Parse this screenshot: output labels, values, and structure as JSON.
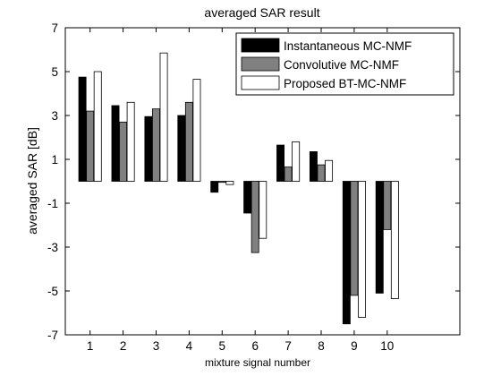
{
  "chart_data": {
    "type": "bar",
    "title": "averaged SAR result",
    "xlabel": "mixture signal number",
    "ylabel": "averaged SAR [dB]",
    "categories": [
      "1",
      "2",
      "3",
      "4",
      "5",
      "6",
      "7",
      "8",
      "9",
      "10"
    ],
    "xlim": [
      0.25,
      12.2
    ],
    "ylim": [
      -7,
      7
    ],
    "yticks": [
      "-7",
      "-5",
      "-3",
      "-1",
      "1",
      "3",
      "5",
      "7"
    ],
    "grid": false,
    "legend_position": "top-right",
    "series": [
      {
        "name": "Instantaneous MC-NMF",
        "color": "#000000",
        "values": [
          4.75,
          3.45,
          2.95,
          3.0,
          -0.5,
          -1.45,
          1.65,
          1.35,
          -6.5,
          -5.1
        ]
      },
      {
        "name": "Convolutive MC-NMF",
        "color": "#808080",
        "values": [
          3.2,
          2.7,
          3.3,
          3.6,
          -0.05,
          -3.25,
          0.65,
          0.75,
          -5.2,
          -2.2
        ]
      },
      {
        "name": "Proposed BT-MC-NMF",
        "color": "#ffffff",
        "values": [
          5.0,
          3.6,
          5.85,
          4.65,
          -0.15,
          -2.6,
          1.8,
          0.95,
          -6.2,
          -5.35
        ]
      }
    ]
  }
}
